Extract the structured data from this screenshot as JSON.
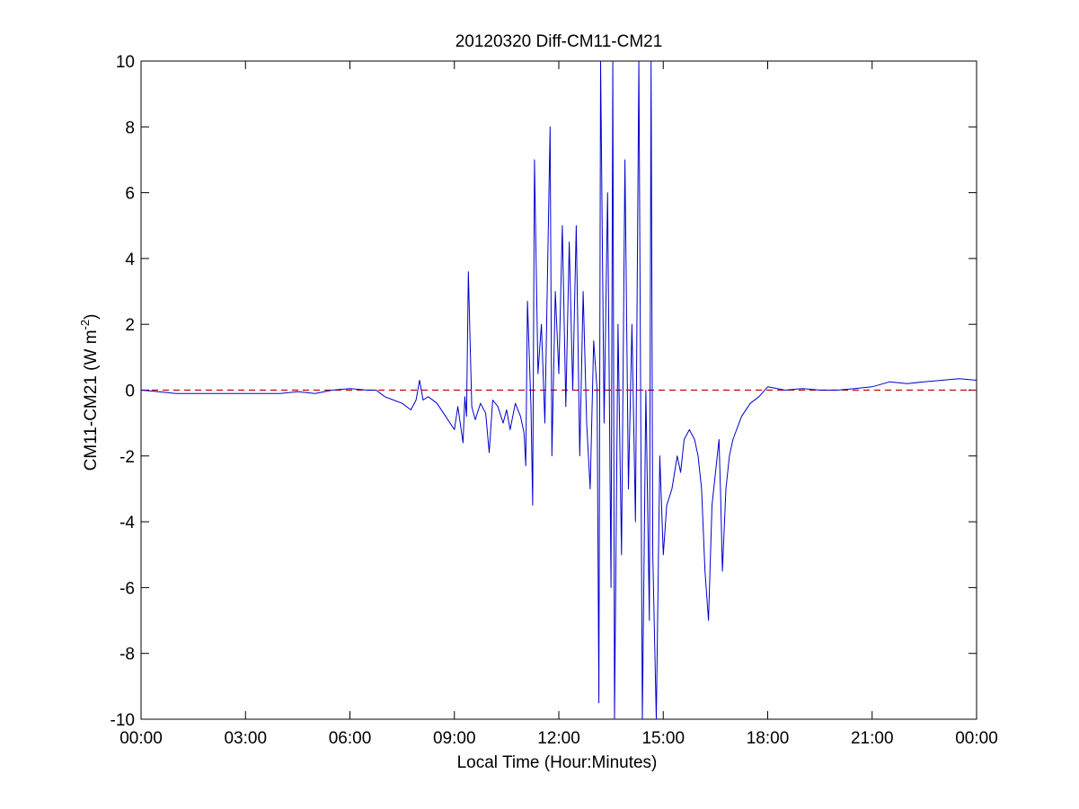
{
  "chart_data": {
    "type": "line",
    "title": "20120320 Diff-CM11-CM21",
    "xlabel": "Local Time (Hour:Minutes)",
    "ylabel": "CM11-CM21 (W m",
    "ylabel_sup": "-2",
    "ylabel_close": ")",
    "xlim": [
      0,
      24
    ],
    "ylim": [
      -10,
      10
    ],
    "x_ticks": [
      0,
      3,
      6,
      9,
      12,
      15,
      18,
      21,
      24
    ],
    "x_tick_labels": [
      "00:00",
      "03:00",
      "06:00",
      "09:00",
      "12:00",
      "15:00",
      "18:00",
      "21:00",
      "00:00"
    ],
    "y_ticks": [
      -10,
      -8,
      -6,
      -4,
      -2,
      0,
      2,
      4,
      6,
      8,
      10
    ],
    "y_tick_labels": [
      "-10",
      "-8",
      "-6",
      "-4",
      "-2",
      "0",
      "2",
      "4",
      "6",
      "8",
      "10"
    ],
    "grid": false,
    "reference_line": {
      "y": 0,
      "color": "#cc0000",
      "style": "dashed"
    },
    "series": [
      {
        "color": "#0000cc",
        "x": [
          0.0,
          0.5,
          1.0,
          1.5,
          2.0,
          2.5,
          3.0,
          3.5,
          4.0,
          4.5,
          5.0,
          5.5,
          6.0,
          6.5,
          6.75,
          7.0,
          7.25,
          7.5,
          7.75,
          7.9,
          8.0,
          8.1,
          8.25,
          8.5,
          8.75,
          9.0,
          9.1,
          9.25,
          9.3,
          9.35,
          9.4,
          9.5,
          9.6,
          9.75,
          9.9,
          10.0,
          10.1,
          10.25,
          10.4,
          10.5,
          10.6,
          10.75,
          10.9,
          11.0,
          11.05,
          11.1,
          11.2,
          11.25,
          11.3,
          11.4,
          11.5,
          11.6,
          11.75,
          11.8,
          11.9,
          12.0,
          12.1,
          12.2,
          12.3,
          12.4,
          12.5,
          12.6,
          12.7,
          12.8,
          12.9,
          13.0,
          13.1,
          13.15,
          13.2,
          13.3,
          13.4,
          13.5,
          13.55,
          13.6,
          13.7,
          13.8,
          13.9,
          14.0,
          14.1,
          14.2,
          14.3,
          14.4,
          14.5,
          14.6,
          14.65,
          14.7,
          14.8,
          14.9,
          15.0,
          15.1,
          15.25,
          15.4,
          15.5,
          15.6,
          15.75,
          15.9,
          16.0,
          16.1,
          16.2,
          16.3,
          16.4,
          16.5,
          16.6,
          16.65,
          16.7,
          16.8,
          16.9,
          17.0,
          17.25,
          17.5,
          17.75,
          18.0,
          18.5,
          19.0,
          19.5,
          20.0,
          20.5,
          21.0,
          21.5,
          22.0,
          22.5,
          23.0,
          23.5,
          24.0
        ],
        "values": [
          0.0,
          -0.05,
          -0.1,
          -0.1,
          -0.1,
          -0.1,
          -0.1,
          -0.1,
          -0.1,
          -0.05,
          -0.1,
          0.0,
          0.05,
          0.0,
          0.0,
          -0.2,
          -0.3,
          -0.4,
          -0.6,
          -0.3,
          0.3,
          -0.3,
          -0.2,
          -0.4,
          -0.8,
          -1.2,
          -0.5,
          -1.6,
          -0.2,
          -0.8,
          3.6,
          -0.5,
          -0.9,
          -0.4,
          -0.7,
          -1.9,
          -0.3,
          -0.5,
          -1.0,
          -0.6,
          -1.2,
          -0.4,
          -0.8,
          -1.3,
          -2.3,
          2.7,
          -0.5,
          -3.5,
          7.0,
          0.5,
          2.0,
          -1.0,
          8.0,
          -2.0,
          3.0,
          0.5,
          5.0,
          -0.5,
          4.5,
          0.0,
          5.0,
          -2.0,
          3.0,
          -1.0,
          -3.0,
          1.5,
          0.0,
          -9.5,
          10.0,
          -1.0,
          6.0,
          -6.0,
          10.0,
          -10.0,
          2.0,
          -5.0,
          7.0,
          -3.0,
          2.0,
          -4.0,
          10.0,
          -10.0,
          0.0,
          -7.0,
          10.0,
          -5.0,
          -10.0,
          -2.0,
          -5.0,
          -3.5,
          -3.0,
          -2.0,
          -2.5,
          -1.5,
          -1.2,
          -1.5,
          -2.0,
          -3.0,
          -5.5,
          -7.0,
          -3.5,
          -2.5,
          -1.5,
          -3.3,
          -5.5,
          -3.0,
          -2.0,
          -1.5,
          -0.8,
          -0.4,
          -0.2,
          0.1,
          0.0,
          0.05,
          0.0,
          0.0,
          0.05,
          0.1,
          0.25,
          0.2,
          0.25,
          0.3,
          0.35,
          0.3
        ]
      }
    ]
  }
}
